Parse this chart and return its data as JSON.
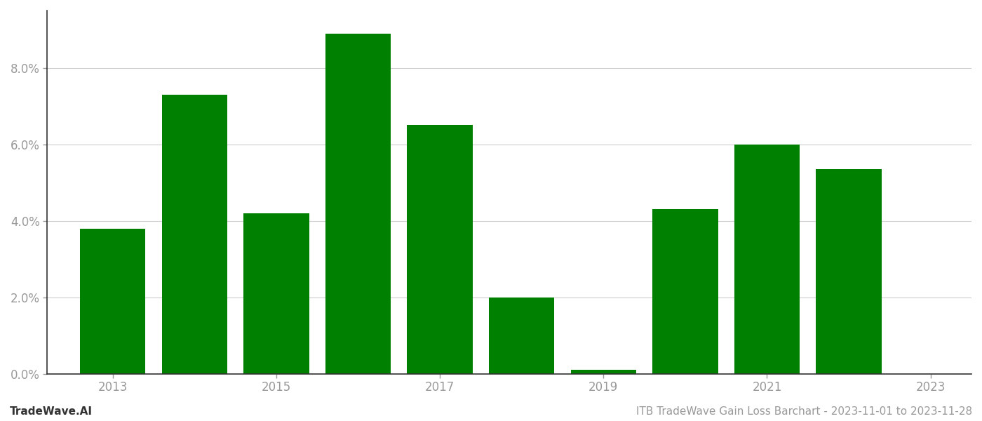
{
  "years": [
    2013,
    2014,
    2015,
    2016,
    2017,
    2018,
    2019,
    2020,
    2021,
    2022
  ],
  "values": [
    0.038,
    0.073,
    0.042,
    0.089,
    0.065,
    0.02,
    0.001,
    0.043,
    0.06,
    0.0535
  ],
  "bar_color": "#008000",
  "background_color": "#ffffff",
  "ylim": [
    0,
    0.095
  ],
  "yticks": [
    0.0,
    0.02,
    0.04,
    0.06,
    0.08
  ],
  "xticks": [
    2013,
    2015,
    2017,
    2019,
    2021,
    2023
  ],
  "xlim": [
    2012.2,
    2023.5
  ],
  "xlabel": "",
  "ylabel": "",
  "footer_left": "TradeWave.AI",
  "footer_right": "ITB TradeWave Gain Loss Barchart - 2023-11-01 to 2023-11-28",
  "grid_color": "#cccccc",
  "tick_color": "#999999",
  "spine_color": "#333333",
  "footer_fontsize": 11,
  "bar_width": 0.8
}
